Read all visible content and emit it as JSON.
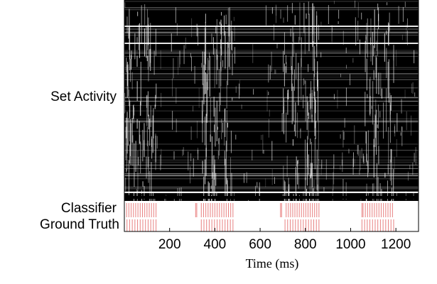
{
  "chart_data": {
    "type": "heatmap",
    "row_labels": [
      "Set Activity",
      "Classifier",
      "Ground Truth"
    ],
    "xlabel": "Time (ms)",
    "xlim": [
      0,
      1300
    ],
    "xticks": [
      200,
      400,
      600,
      800,
      1000,
      1200
    ],
    "xtick_labels": [
      "200",
      "400",
      "600",
      "800",
      "1000",
      "1200"
    ],
    "active_windows_ms": [
      [
        0,
        140
      ],
      [
        340,
        480
      ],
      [
        700,
        860
      ],
      [
        1050,
        1190
      ]
    ],
    "background_color": "#000000",
    "activity_color": "#ffffff",
    "classifier_color": "#e88080",
    "ground_truth_color": "#e88080",
    "classifier_events": [
      {
        "start": 0,
        "end": 140
      },
      {
        "start": 315,
        "end": 320
      },
      {
        "start": 340,
        "end": 480
      },
      {
        "start": 690,
        "end": 695
      },
      {
        "start": 715,
        "end": 860
      },
      {
        "start": 1050,
        "end": 1055
      },
      {
        "start": 1065,
        "end": 1185
      }
    ],
    "ground_truth_events": [
      {
        "start": 0,
        "end": 140
      },
      {
        "start": 340,
        "end": 480
      },
      {
        "start": 710,
        "end": 860
      },
      {
        "start": 1050,
        "end": 1190
      }
    ]
  }
}
